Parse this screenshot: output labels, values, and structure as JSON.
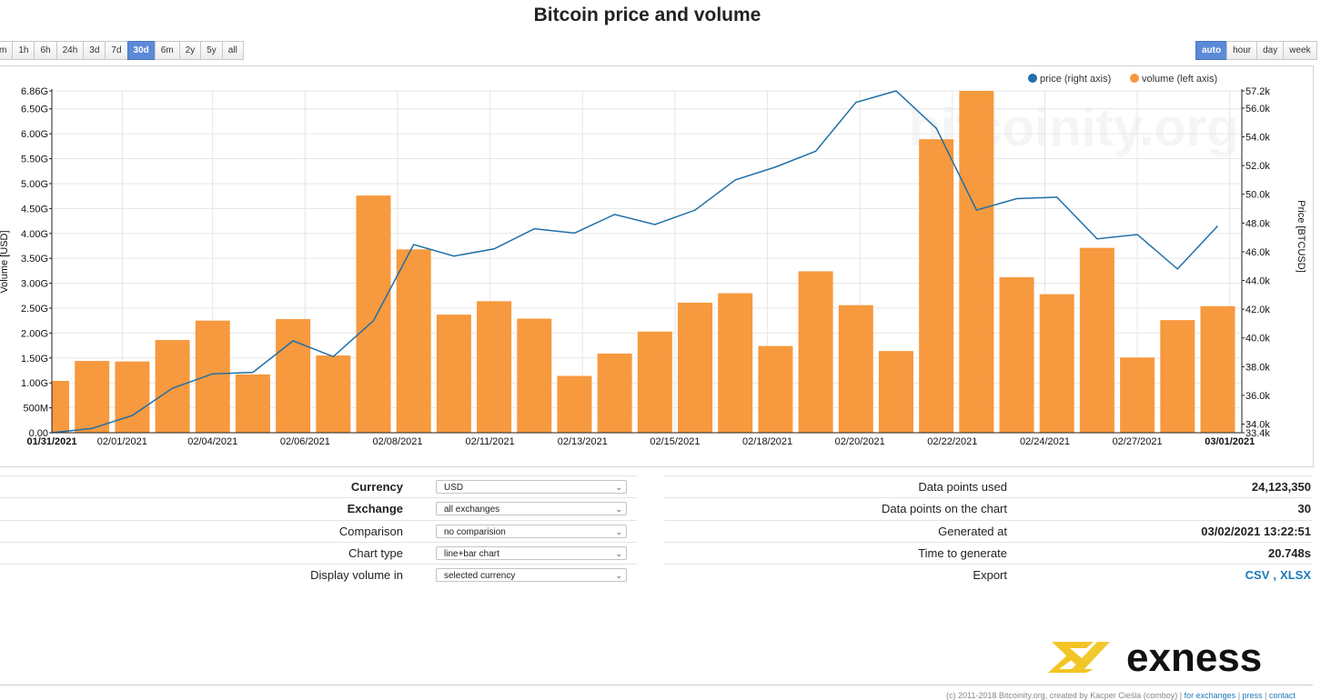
{
  "title": "Bitcoin price and volume",
  "range_buttons": [
    {
      "label": "m",
      "active": false
    },
    {
      "label": "1h",
      "active": false
    },
    {
      "label": "6h",
      "active": false
    },
    {
      "label": "24h",
      "active": false
    },
    {
      "label": "3d",
      "active": false
    },
    {
      "label": "7d",
      "active": false
    },
    {
      "label": "30d",
      "active": true
    },
    {
      "label": "6m",
      "active": false
    },
    {
      "label": "2y",
      "active": false
    },
    {
      "label": "5y",
      "active": false
    },
    {
      "label": "all",
      "active": false
    }
  ],
  "resolution_buttons": [
    {
      "label": "auto",
      "active": true
    },
    {
      "label": "hour",
      "active": false
    },
    {
      "label": "day",
      "active": false
    },
    {
      "label": "week",
      "active": false
    }
  ],
  "chart_data": {
    "type": "bar",
    "title": "Bitcoin price and volume",
    "watermark": "bitcoinity.org",
    "legend": [
      {
        "name": "price (right axis)",
        "color": "#1f6fa8"
      },
      {
        "name": "volume (left axis)",
        "color": "#f7993e"
      }
    ],
    "legend_position": "top-right",
    "ylabel_left": "Volume [USD]",
    "ylabel_right": "Price [BTCUSD]",
    "y_left_range": [
      0,
      6.86
    ],
    "y_left_ticks": [
      {
        "v": 0,
        "label": "0.00"
      },
      {
        "v": 0.5,
        "label": "500M"
      },
      {
        "v": 1.0,
        "label": "1.00G"
      },
      {
        "v": 1.5,
        "label": "1.50G"
      },
      {
        "v": 2.0,
        "label": "2.00G"
      },
      {
        "v": 2.5,
        "label": "2.50G"
      },
      {
        "v": 3.0,
        "label": "3.00G"
      },
      {
        "v": 3.5,
        "label": "3.50G"
      },
      {
        "v": 4.0,
        "label": "4.00G"
      },
      {
        "v": 4.5,
        "label": "4.50G"
      },
      {
        "v": 5.0,
        "label": "5.00G"
      },
      {
        "v": 5.5,
        "label": "5.50G"
      },
      {
        "v": 6.0,
        "label": "6.00G"
      },
      {
        "v": 6.5,
        "label": "6.50G"
      },
      {
        "v": 6.86,
        "label": "6.86G"
      }
    ],
    "y_right_range": [
      33.4,
      57.2
    ],
    "y_right_ticks": [
      {
        "v": 33.4,
        "label": "33.4k"
      },
      {
        "v": 34,
        "label": "34.0k"
      },
      {
        "v": 36,
        "label": "36.0k"
      },
      {
        "v": 38,
        "label": "38.0k"
      },
      {
        "v": 40,
        "label": "40.0k"
      },
      {
        "v": 42,
        "label": "42.0k"
      },
      {
        "v": 44,
        "label": "44.0k"
      },
      {
        "v": 46,
        "label": "46.0k"
      },
      {
        "v": 48,
        "label": "48.0k"
      },
      {
        "v": 50,
        "label": "50.0k"
      },
      {
        "v": 52,
        "label": "52.0k"
      },
      {
        "v": 54,
        "label": "54.0k"
      },
      {
        "v": 56,
        "label": "56.0k"
      },
      {
        "v": 57.2,
        "label": "57.2k"
      }
    ],
    "x_ticks": [
      {
        "day": 0,
        "label": "01/31/2021",
        "bold": true
      },
      {
        "day": 1.75,
        "label": "02/01/2021",
        "bold": false
      },
      {
        "day": 4,
        "label": "02/04/2021",
        "bold": false
      },
      {
        "day": 6.3,
        "label": "02/06/2021",
        "bold": false
      },
      {
        "day": 8.6,
        "label": "02/08/2021",
        "bold": false
      },
      {
        "day": 10.9,
        "label": "02/11/2021",
        "bold": false
      },
      {
        "day": 13.2,
        "label": "02/13/2021",
        "bold": false
      },
      {
        "day": 15.5,
        "label": "02/15/2021",
        "bold": false
      },
      {
        "day": 17.8,
        "label": "02/18/2021",
        "bold": false
      },
      {
        "day": 20.1,
        "label": "02/20/2021",
        "bold": false
      },
      {
        "day": 22.4,
        "label": "02/22/2021",
        "bold": false
      },
      {
        "day": 24.7,
        "label": "02/24/2021",
        "bold": false
      },
      {
        "day": 27,
        "label": "02/27/2021",
        "bold": false
      },
      {
        "day": 29.3,
        "label": "03/01/2021",
        "bold": true
      }
    ],
    "x_range": [
      0,
      29.6
    ],
    "series": [
      {
        "name": "volume (left axis)",
        "axis": "left",
        "type": "bar",
        "color": "#f7993e",
        "values": [
          1.04,
          1.44,
          1.43,
          1.86,
          2.25,
          1.17,
          2.28,
          1.55,
          4.76,
          3.68,
          2.37,
          2.64,
          2.29,
          1.14,
          1.59,
          2.03,
          2.61,
          2.8,
          1.74,
          3.24,
          2.56,
          1.64,
          5.89,
          6.86,
          3.12,
          2.78,
          3.71,
          1.51,
          2.26,
          2.54
        ]
      },
      {
        "name": "price (right axis)",
        "axis": "right",
        "type": "line",
        "color": "#1f6fa8",
        "values": [
          33.4,
          33.7,
          34.6,
          36.5,
          37.5,
          37.6,
          39.8,
          38.7,
          41.2,
          46.5,
          45.7,
          46.2,
          47.6,
          47.3,
          48.6,
          47.9,
          48.9,
          51.0,
          51.9,
          53.0,
          56.4,
          57.2,
          54.6,
          48.9,
          49.7,
          49.8,
          46.9,
          47.2,
          44.8,
          47.8
        ]
      }
    ]
  },
  "controls": {
    "rows": [
      {
        "label": "Currency",
        "bold": true,
        "value": "USD"
      },
      {
        "label": "Exchange",
        "bold": true,
        "value": "all exchanges"
      },
      {
        "label": "Comparison",
        "bold": false,
        "value": "no comparision"
      },
      {
        "label": "Chart type",
        "bold": false,
        "value": "line+bar chart"
      },
      {
        "label": "Display volume in",
        "bold": false,
        "value": "selected currency"
      }
    ]
  },
  "stats": {
    "rows": [
      {
        "label": "Data points used",
        "value": "24,123,350"
      },
      {
        "label": "Data points on the chart",
        "value": "30"
      },
      {
        "label": "Generated at",
        "value": "03/02/2021 13:22:51"
      },
      {
        "label": "Time to generate",
        "value": "20.748s"
      },
      {
        "label": "Export",
        "csv": "CSV",
        "sep": ",",
        "xlsx": "XLSX"
      }
    ]
  },
  "logo_text": "exness",
  "footer": {
    "text": "(c) 2011-2018 Bitcoinity.org, created by Kacper Cieśla (comboy) |",
    "link1": "for exchanges",
    "link2": "press",
    "link3": "contact"
  }
}
